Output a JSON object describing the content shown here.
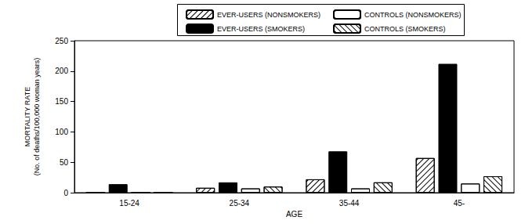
{
  "chart_data": {
    "type": "bar",
    "categories": [
      "15-24",
      "25-34",
      "35-44",
      "45-"
    ],
    "series": [
      {
        "name": "EVER-USERS (NONSMOKERS)",
        "color": "#000000",
        "values": [
          0,
          8,
          22,
          57
        ]
      },
      {
        "name": "EVER-USERS (SMOKERS)",
        "color": "#000000",
        "values": [
          14,
          17,
          68,
          212
        ]
      },
      {
        "name": "CONTROLS (NONSMOKERS)",
        "color": "#000000",
        "values": [
          0,
          7,
          7,
          15
        ]
      },
      {
        "name": "CONTROLS (SMOKERS)",
        "color": "#000000",
        "values": [
          0,
          10,
          17,
          27
        ]
      }
    ],
    "x_label": "AGE",
    "y_label": "MORTALITY RATE\n(No. of deaths/100,000 woman years)",
    "ylim": [
      0,
      250
    ],
    "yticks": [
      0,
      50,
      100,
      150,
      200,
      250
    ],
    "grid": false,
    "legend": "top"
  }
}
